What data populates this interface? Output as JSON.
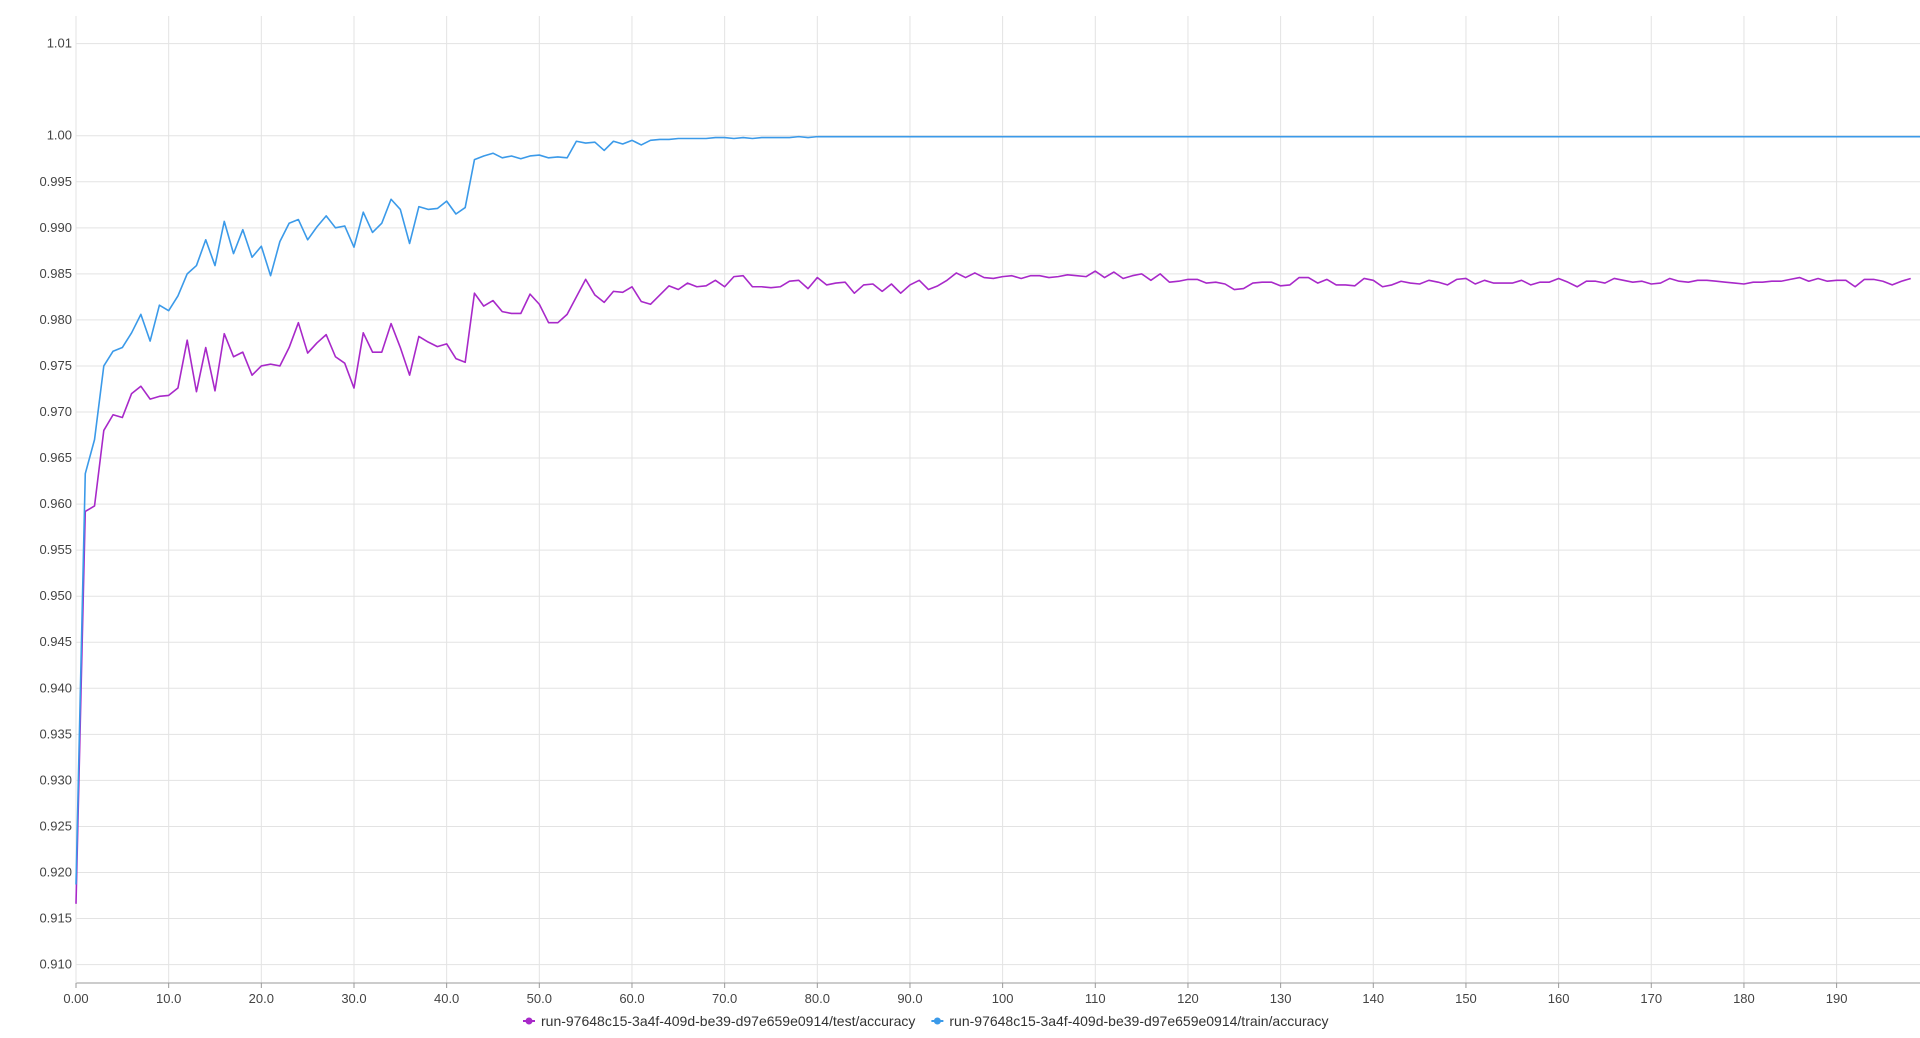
{
  "chart_data": {
    "type": "line",
    "title": "",
    "xlabel": "",
    "ylabel": "",
    "xlim": [
      0,
      199
    ],
    "ylim": [
      0.908,
      1.013
    ],
    "grid": true,
    "legend_position": "bottom-center",
    "x_ticks": [
      0,
      10,
      20,
      30,
      40,
      50,
      60,
      70,
      80,
      90,
      100,
      110,
      120,
      130,
      140,
      150,
      160,
      170,
      180,
      190
    ],
    "x_tick_labels": [
      "0.00",
      "10.0",
      "20.0",
      "30.0",
      "40.0",
      "50.0",
      "60.0",
      "70.0",
      "80.0",
      "90.0",
      "100",
      "110",
      "120",
      "130",
      "140",
      "150",
      "160",
      "170",
      "180",
      "190"
    ],
    "y_ticks": [
      0.91,
      0.915,
      0.92,
      0.925,
      0.93,
      0.935,
      0.94,
      0.945,
      0.95,
      0.955,
      0.96,
      0.965,
      0.97,
      0.975,
      0.98,
      0.985,
      0.99,
      0.995,
      1.0,
      1.01
    ],
    "y_tick_labels": [
      "0.910",
      "0.915",
      "0.920",
      "0.925",
      "0.930",
      "0.935",
      "0.940",
      "0.945",
      "0.950",
      "0.955",
      "0.960",
      "0.965",
      "0.970",
      "0.975",
      "0.980",
      "0.985",
      "0.990",
      "0.995",
      "1.00",
      "1.01"
    ],
    "series": [
      {
        "name": "run-97648c15-3a4f-409d-be39-d97e659e0914/test/accuracy",
        "color": "#a829c9",
        "x_start": 0,
        "values": [
          0.9166,
          0.9592,
          0.9598,
          0.968,
          0.9697,
          0.9694,
          0.972,
          0.9728,
          0.9714,
          0.9717,
          0.9718,
          0.9726,
          0.9778,
          0.9722,
          0.977,
          0.9723,
          0.9785,
          0.976,
          0.9765,
          0.974,
          0.975,
          0.9752,
          0.975,
          0.977,
          0.9797,
          0.9764,
          0.9775,
          0.9784,
          0.976,
          0.9753,
          0.9726,
          0.9786,
          0.9765,
          0.9765,
          0.9796,
          0.977,
          0.974,
          0.9782,
          0.9776,
          0.9771,
          0.9774,
          0.9758,
          0.9754,
          0.9829,
          0.9815,
          0.9821,
          0.9809,
          0.9807,
          0.9807,
          0.9828,
          0.9817,
          0.9797,
          0.9797,
          0.9806,
          0.9825,
          0.9844,
          0.9827,
          0.9819,
          0.9831,
          0.983,
          0.9836,
          0.982,
          0.9817,
          0.9827,
          0.9837,
          0.9833,
          0.984,
          0.9836,
          0.9837,
          0.9843,
          0.9836,
          0.9847,
          0.9848,
          0.9836,
          0.9836,
          0.9835,
          0.9836,
          0.9842,
          0.9843,
          0.9834,
          0.9846,
          0.9838,
          0.984,
          0.9841,
          0.9829,
          0.9838,
          0.9839,
          0.9831,
          0.9839,
          0.9829,
          0.9838,
          0.9843,
          0.9833,
          0.9837,
          0.9843,
          0.9851,
          0.9846,
          0.9851,
          0.9846,
          0.9845,
          0.9847,
          0.9848,
          0.9845,
          0.9848,
          0.9848,
          0.9846,
          0.9847,
          0.9849,
          0.9848,
          0.9847,
          0.9853,
          0.9846,
          0.9852,
          0.9845,
          0.9848,
          0.985,
          0.9843,
          0.985,
          0.9841,
          0.9842,
          0.9844,
          0.9844,
          0.984,
          0.9841,
          0.9839,
          0.9833,
          0.9834,
          0.984,
          0.9841,
          0.9841,
          0.9837,
          0.9838,
          0.9846,
          0.9846,
          0.984,
          0.9844,
          0.9838,
          0.9838,
          0.9837,
          0.9845,
          0.9843,
          0.9836,
          0.9838,
          0.9842,
          0.984,
          0.9839,
          0.9843,
          0.9841,
          0.9838,
          0.9844,
          0.9845,
          0.9839,
          0.9843,
          0.984,
          0.984,
          0.984,
          0.9843,
          0.9838,
          0.9841,
          0.9841,
          0.9845,
          0.9841,
          0.9836,
          0.9842,
          0.9842,
          0.984,
          0.9845,
          0.9843,
          0.9841,
          0.9842,
          0.9839,
          0.984,
          0.9845,
          0.9842,
          0.9841,
          0.9843,
          0.9843,
          0.9842,
          0.9841,
          0.984,
          0.9839,
          0.9841,
          0.9841,
          0.9842,
          0.9842,
          0.9844,
          0.9846,
          0.9842,
          0.9845,
          0.9842,
          0.9843,
          0.9843,
          0.9836,
          0.9844,
          0.9844,
          0.9842,
          0.9838,
          0.9842,
          0.9845
        ]
      },
      {
        "name": "run-97648c15-3a4f-409d-be39-d97e659e0914/train/accuracy",
        "color": "#3b9ae9",
        "x_start": 0,
        "values": [
          0.9187,
          0.9633,
          0.967,
          0.975,
          0.9766,
          0.977,
          0.9786,
          0.9806,
          0.9777,
          0.9816,
          0.981,
          0.9826,
          0.985,
          0.9859,
          0.9887,
          0.9859,
          0.9907,
          0.9872,
          0.9898,
          0.9868,
          0.988,
          0.9848,
          0.9885,
          0.9905,
          0.9909,
          0.9887,
          0.9901,
          0.9913,
          0.99,
          0.9902,
          0.9879,
          0.9917,
          0.9895,
          0.9905,
          0.9931,
          0.992,
          0.9883,
          0.9923,
          0.992,
          0.9921,
          0.9929,
          0.9915,
          0.9922,
          0.9974,
          0.9978,
          0.9981,
          0.9976,
          0.9978,
          0.9975,
          0.9978,
          0.9979,
          0.9976,
          0.9977,
          0.9976,
          0.9994,
          0.9992,
          0.9993,
          0.9984,
          0.9994,
          0.9991,
          0.9995,
          0.999,
          0.9995,
          0.9996,
          0.9996,
          0.9997,
          0.9997,
          0.9997,
          0.9997,
          0.9998,
          0.9998,
          0.9997,
          0.9998,
          0.9997,
          0.9998,
          0.9998,
          0.9998,
          0.9998,
          0.9999,
          0.9998,
          0.9999,
          0.9999,
          0.9999,
          0.9999,
          0.9999,
          0.9999,
          0.9999,
          0.9999,
          0.9999,
          0.9999,
          0.9999,
          0.9999,
          0.9999,
          0.9999,
          0.9999,
          0.9999,
          0.9999,
          0.9999,
          0.9999,
          0.9999,
          0.9999,
          0.9999,
          0.9999,
          0.9999,
          0.9999,
          0.9999,
          0.9999,
          0.9999,
          0.9999,
          0.9999,
          0.9999,
          0.9999,
          0.9999,
          0.9999,
          0.9999,
          0.9999,
          0.9999,
          0.9999,
          0.9999,
          0.9999,
          0.9999,
          0.9999,
          0.9999,
          0.9999,
          0.9999,
          0.9999,
          0.9999,
          0.9999,
          0.9999,
          0.9999,
          0.9999,
          0.9999,
          0.9999,
          0.9999,
          0.9999,
          0.9999,
          0.9999,
          0.9999,
          0.9999,
          0.9999,
          0.9999,
          0.9999,
          0.9999,
          0.9999,
          0.9999,
          0.9999,
          0.9999,
          0.9999,
          0.9999,
          0.9999,
          0.9999,
          0.9999,
          0.9999,
          0.9999,
          0.9999,
          0.9999,
          0.9999,
          0.9999,
          0.9999,
          0.9999,
          0.9999,
          0.9999,
          0.9999,
          0.9999,
          0.9999,
          0.9999,
          0.9999,
          0.9999,
          0.9999,
          0.9999,
          0.9999,
          0.9999,
          0.9999,
          0.9999,
          0.9999,
          0.9999,
          0.9999,
          0.9999,
          0.9999,
          0.9999,
          0.9999,
          0.9999,
          0.9999,
          0.9999,
          0.9999,
          0.9999,
          0.9999,
          0.9999,
          0.9999,
          0.9999,
          0.9999,
          0.9999,
          0.9999,
          0.9999,
          0.9999,
          0.9999,
          0.9999,
          0.9999,
          0.9999,
          0.9999
        ]
      }
    ]
  }
}
